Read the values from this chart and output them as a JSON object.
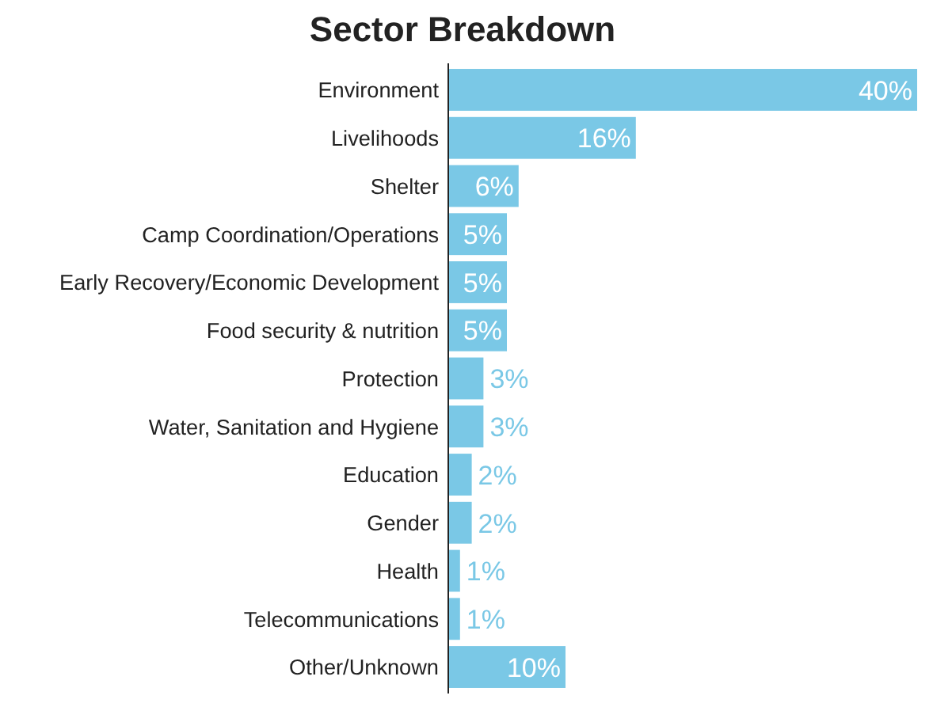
{
  "chart_data": {
    "type": "bar",
    "orientation": "horizontal",
    "title": "Sector Breakdown",
    "categories": [
      "Environment",
      "Livelihoods",
      "Shelter",
      "Camp Coordination/Operations",
      "Early Recovery/Economic Development",
      "Food security & nutrition",
      "Protection",
      "Water, Sanitation and Hygiene",
      "Education",
      "Gender",
      "Health",
      "Telecommunications",
      "Other/Unknown"
    ],
    "values": [
      40,
      16,
      6,
      5,
      5,
      5,
      3,
      3,
      2,
      2,
      1,
      1,
      10
    ],
    "value_labels": [
      "40%",
      "16%",
      "6%",
      "5%",
      "5%",
      "5%",
      "3%",
      "3%",
      "2%",
      "2%",
      "1%",
      "1%",
      "10%"
    ],
    "color": "#7ac8e6"
  }
}
